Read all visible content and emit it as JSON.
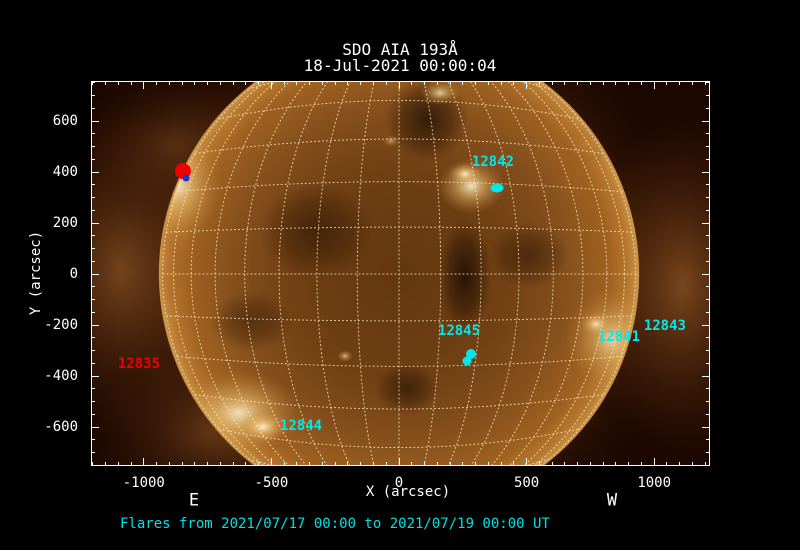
{
  "title": {
    "line1": "SDO AIA 193Å",
    "line2": "18-Jul-2021 00:00:04"
  },
  "axis": {
    "xlabel": "X (arcsec)",
    "ylabel": "Y (arcsec)",
    "east": "E",
    "west": "W"
  },
  "footer": {
    "text": "Flares from 2021/07/17 00:00 to 2021/07/19 00:00 UT",
    "color": "#00e0e0"
  },
  "colors": {
    "background": "#000000",
    "frame": "#ffffff",
    "tick_text": "#ffffff",
    "annotation_cyan": "#00e8e8",
    "annotation_red": "#ee0000",
    "marker_blue": "#2233cc",
    "grid_dots": "#ffe6b9",
    "sky_inside_frame": "#1c0700",
    "disk_limb": "#c9964c"
  },
  "chart_data": {
    "type": "scatter",
    "title": "SDO AIA 193Å",
    "subtitle": "18-Jul-2021 00:00:04",
    "xlabel": "X (arcsec)",
    "ylabel": "Y (arcsec)",
    "xlim": [
      -1207,
      1219
    ],
    "ylim": [
      -753,
      757
    ],
    "x_ticks": [
      -1000,
      -500,
      0,
      500,
      1000
    ],
    "y_ticks": [
      -600,
      -400,
      -200,
      0,
      200,
      400,
      600
    ],
    "x_minor_step": 50,
    "y_minor_step": 50,
    "grid": "heliographic 10-degree dotted grid overlaid on solar disk, solar radius ~940 arcsec",
    "background_image": "SDO AIA 193 angstrom full-disk EUV image, gold/sepia colormap",
    "annotations": [
      {
        "text": "12842",
        "x": 368,
        "y": 439,
        "color": "#00e8e8"
      },
      {
        "text": "12845",
        "x": 235,
        "y": -224,
        "color": "#00e8e8"
      },
      {
        "text": "12843",
        "x": 1042,
        "y": -204,
        "color": "#00e8e8"
      },
      {
        "text": "12841",
        "x": 862,
        "y": -247,
        "color": "#00e8e8"
      },
      {
        "text": "12844",
        "x": -384,
        "y": -596,
        "color": "#00e8e8"
      },
      {
        "text": "12835",
        "x": -1019,
        "y": -353,
        "color": "#ee0000"
      }
    ],
    "flare_markers": [
      {
        "name": "flare-marker-12842",
        "x": 384,
        "y": 337,
        "w": 13,
        "h": 9,
        "color": "#00e8e8"
      },
      {
        "name": "flare-marker-12845-a",
        "x": 282,
        "y": -314,
        "w": 10,
        "h": 10,
        "color": "#00e8e8"
      },
      {
        "name": "flare-marker-12845-b",
        "x": 266,
        "y": -341,
        "w": 9,
        "h": 9,
        "color": "#00e8e8"
      },
      {
        "name": "flare-marker-east-red",
        "x": -846,
        "y": 404,
        "w": 16,
        "h": 16,
        "color": "#ee0000"
      },
      {
        "name": "flare-marker-east-blue",
        "x": -835,
        "y": 376,
        "w": 7,
        "h": 7,
        "color": "#2233cc"
      }
    ]
  }
}
